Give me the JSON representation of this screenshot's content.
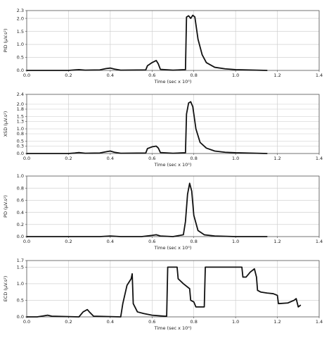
{
  "chart_data": [
    {
      "type": "line",
      "ylabel": "PID (µV.s²)",
      "xlabel": "Time (sec x 10⁵)",
      "xlim": [
        0,
        1.4
      ],
      "ylim": [
        0,
        2.3
      ],
      "xticks": [
        "0.0",
        "0.2",
        "0.4",
        "0.6",
        "0.8",
        "1.0",
        "1.2",
        "1.4"
      ],
      "yticks": [
        "0.0",
        "0.5",
        "1.0",
        "1.5",
        "2.0",
        "2.3"
      ],
      "ytick_values": [
        0,
        0.5,
        1.0,
        1.5,
        2.0,
        2.3
      ],
      "grid": true,
      "series": [
        {
          "x": [
            0.0,
            0.2,
            0.23,
            0.25,
            0.28,
            0.35,
            0.38,
            0.4,
            0.42,
            0.45,
            0.57,
            0.578,
            0.6,
            0.62,
            0.63,
            0.64,
            0.7,
            0.76,
            0.765,
            0.775,
            0.785,
            0.795,
            0.805,
            0.82,
            0.84,
            0.86,
            0.9,
            0.95,
            1.0,
            1.05,
            1.1,
            1.15
          ],
          "y": [
            0.0,
            0.0,
            0.02,
            0.03,
            0.01,
            0.02,
            0.07,
            0.09,
            0.05,
            0.01,
            0.02,
            0.18,
            0.3,
            0.38,
            0.25,
            0.04,
            0.01,
            0.03,
            2.05,
            2.1,
            2.0,
            2.12,
            2.05,
            1.2,
            0.6,
            0.3,
            0.12,
            0.06,
            0.03,
            0.02,
            0.01,
            0.0
          ]
        }
      ]
    },
    {
      "type": "line",
      "ylabel": "XSD (µV.s²)",
      "xlabel": "Time (sec x 10⁵)",
      "xlim": [
        0,
        1.4
      ],
      "ylim": [
        0,
        2.4
      ],
      "xticks": [
        "0.0",
        "0.2",
        "0.4",
        "0.6",
        "0.8",
        "1.0",
        "1.2",
        "1.4"
      ],
      "yticks": [
        "0.0",
        "0.3",
        "0.5",
        "0.8",
        "1.0",
        "1.3",
        "1.5",
        "1.8",
        "2.0",
        "2.4"
      ],
      "ytick_values": [
        0,
        0.3,
        0.5,
        0.8,
        1.0,
        1.3,
        1.5,
        1.8,
        2.0,
        2.4
      ],
      "grid": true,
      "series": [
        {
          "x": [
            0.0,
            0.2,
            0.23,
            0.25,
            0.28,
            0.35,
            0.38,
            0.4,
            0.42,
            0.45,
            0.57,
            0.578,
            0.6,
            0.62,
            0.63,
            0.64,
            0.7,
            0.76,
            0.765,
            0.775,
            0.785,
            0.795,
            0.81,
            0.83,
            0.86,
            0.9,
            0.95,
            1.0,
            1.1,
            1.15
          ],
          "y": [
            0.0,
            0.0,
            0.02,
            0.04,
            0.01,
            0.02,
            0.07,
            0.1,
            0.05,
            0.01,
            0.02,
            0.2,
            0.27,
            0.3,
            0.22,
            0.04,
            0.01,
            0.03,
            1.6,
            2.05,
            2.1,
            1.9,
            1.0,
            0.45,
            0.22,
            0.1,
            0.05,
            0.03,
            0.01,
            0.0
          ]
        }
      ]
    },
    {
      "type": "line",
      "ylabel": "PD (µV.s²)",
      "xlabel": "Time (sec x 10⁵)",
      "xlim": [
        0,
        1.4
      ],
      "ylim": [
        0,
        1.0
      ],
      "xticks": [
        "0.0",
        "0.2",
        "0.4",
        "0.6",
        "0.8",
        "1.0",
        "1.2",
        "1.4"
      ],
      "yticks": [
        "0.0",
        "0.2",
        "0.4",
        "0.6",
        "0.8",
        "1.0"
      ],
      "ytick_values": [
        0,
        0.2,
        0.4,
        0.6,
        0.8,
        1.0
      ],
      "grid": true,
      "series": [
        {
          "x": [
            0.0,
            0.35,
            0.4,
            0.45,
            0.55,
            0.6,
            0.62,
            0.64,
            0.7,
            0.75,
            0.76,
            0.77,
            0.78,
            0.79,
            0.8,
            0.82,
            0.85,
            0.9,
            1.0,
            1.15
          ],
          "y": [
            0.0,
            0.0,
            0.01,
            0.0,
            0.0,
            0.02,
            0.03,
            0.01,
            0.0,
            0.03,
            0.25,
            0.7,
            0.88,
            0.75,
            0.35,
            0.1,
            0.03,
            0.01,
            0.0,
            0.0
          ]
        }
      ]
    },
    {
      "type": "line",
      "ylabel": "ECD (µV.s²)",
      "xlabel": "Time (sec x 10⁵)",
      "xlim": [
        0,
        1.4
      ],
      "ylim": [
        0,
        1.7
      ],
      "xticks": [
        "0.0",
        "0.2",
        "0.4",
        "0.6",
        "0.8",
        "1.0",
        "1.2",
        "1.4"
      ],
      "yticks": [
        "0.0",
        "0.5",
        "1.0",
        "1.5",
        "1.7"
      ],
      "ytick_values": [
        0,
        0.5,
        1.0,
        1.5,
        1.7
      ],
      "grid": true,
      "series": [
        {
          "x": [
            0.0,
            0.05,
            0.08,
            0.1,
            0.12,
            0.25,
            0.27,
            0.29,
            0.3,
            0.32,
            0.45,
            0.46,
            0.48,
            0.5,
            0.505,
            0.51,
            0.53,
            0.56,
            0.6,
            0.66,
            0.67,
            0.675,
            0.72,
            0.725,
            0.75,
            0.78,
            0.785,
            0.8,
            0.81,
            0.815,
            0.85,
            0.855,
            1.03,
            1.035,
            1.05,
            1.07,
            1.09,
            1.1,
            1.105,
            1.12,
            1.15,
            1.18,
            1.2,
            1.205,
            1.25,
            1.28,
            1.29,
            1.3,
            1.31
          ],
          "y": [
            0.0,
            0.0,
            0.03,
            0.05,
            0.02,
            0.0,
            0.15,
            0.22,
            0.15,
            0.02,
            0.0,
            0.4,
            0.95,
            1.15,
            1.3,
            0.4,
            0.15,
            0.1,
            0.05,
            0.02,
            0.02,
            1.5,
            1.5,
            1.15,
            1.0,
            0.85,
            0.5,
            0.45,
            0.3,
            0.3,
            0.3,
            1.5,
            1.5,
            1.2,
            1.2,
            1.35,
            1.45,
            1.2,
            0.8,
            0.75,
            0.72,
            0.7,
            0.65,
            0.4,
            0.42,
            0.5,
            0.55,
            0.3,
            0.35
          ]
        }
      ]
    }
  ]
}
